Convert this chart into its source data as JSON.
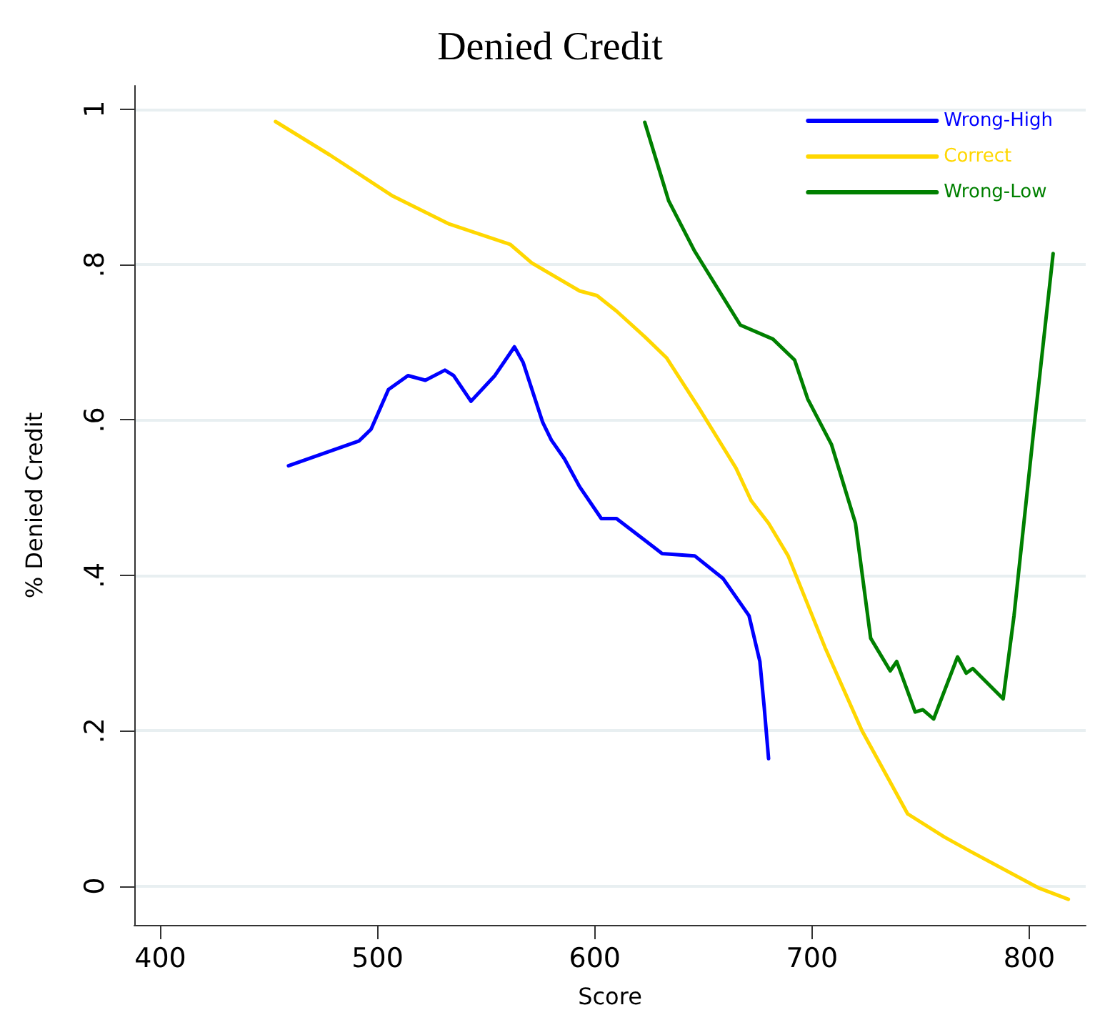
{
  "chart_data": {
    "type": "line",
    "title": "Denied Credit",
    "xlabel": "Score",
    "ylabel": "% Denied Credit",
    "xlim": [
      388,
      826
    ],
    "xticks": [
      400,
      500,
      600,
      700,
      800
    ],
    "ylim": [
      -0.05,
      1.03
    ],
    "yticks": [
      {
        "value": 0,
        "label": "0"
      },
      {
        "value": 0.2,
        "label": ".2"
      },
      {
        "value": 0.4,
        "label": ".4"
      },
      {
        "value": 0.6,
        "label": ".6"
      },
      {
        "value": 0.8,
        "label": ".8"
      },
      {
        "value": 1,
        "label": "1"
      }
    ],
    "grid": "y",
    "legend": "top right",
    "marker": "none",
    "line_style": "solid",
    "series": [
      {
        "name": "Wrong-High",
        "color": "#0000ff",
        "x": [
          459,
          491.5,
          497,
          505,
          514,
          522,
          531,
          535,
          543,
          554,
          563,
          567,
          576,
          580,
          586,
          593,
          603,
          610,
          631,
          646,
          659,
          671,
          676,
          678,
          680
        ],
        "values": [
          0.541,
          0.573,
          0.588,
          0.639,
          0.657,
          0.651,
          0.664,
          0.657,
          0.624,
          0.657,
          0.694,
          0.674,
          0.597,
          0.574,
          0.55,
          0.514,
          0.473,
          0.473,
          0.428,
          0.425,
          0.396,
          0.348,
          0.289,
          0.23,
          0.164
        ]
      },
      {
        "name": "Correct",
        "color": "#ffd700",
        "x": [
          453,
          478,
          507,
          533,
          561,
          571,
          593,
          601,
          610,
          623,
          633,
          648,
          665,
          672,
          680,
          689,
          706,
          723,
          744,
          761,
          772,
          804,
          818
        ],
        "values": [
          0.984,
          0.941,
          0.888,
          0.852,
          0.826,
          0.802,
          0.766,
          0.76,
          0.74,
          0.707,
          0.68,
          0.615,
          0.538,
          0.496,
          0.467,
          0.425,
          0.307,
          0.2,
          0.093,
          0.063,
          0.046,
          -0.002,
          -0.017
        ]
      },
      {
        "name": "Wrong-Low",
        "color": "#008000",
        "x": [
          623,
          634,
          646,
          667,
          682,
          692,
          698,
          709,
          720,
          727,
          736,
          739,
          747.5,
          751,
          756,
          767,
          771,
          774,
          788,
          793,
          802,
          811
        ],
        "values": [
          0.983,
          0.882,
          0.817,
          0.722,
          0.704,
          0.677,
          0.627,
          0.568,
          0.467,
          0.319,
          0.277,
          0.289,
          0.224,
          0.227,
          0.215,
          0.295,
          0.274,
          0.28,
          0.241,
          0.348,
          0.585,
          0.814
        ]
      }
    ]
  }
}
